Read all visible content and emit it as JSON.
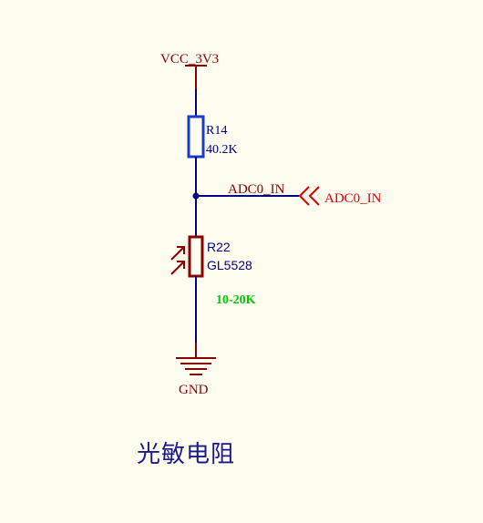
{
  "power": {
    "net": "VCC_3V3"
  },
  "r14": {
    "ref": "R14",
    "value": "40.2K"
  },
  "net_adc": {
    "wire_label": "ADC0_IN",
    "port_label": "ADC0_IN"
  },
  "r22": {
    "ref": "R22",
    "part": "GL5528",
    "range": "10-20K"
  },
  "ground": {
    "net": "GND"
  },
  "caption": "光敏电阻",
  "colors": {
    "wire": "#000080",
    "component_body": "#8b0000",
    "resistor_outline": "#1a3acb",
    "power_port": "#8b0000",
    "net_port": "#e00000",
    "label_dark": "#000080",
    "range_label": "#00c800",
    "caption": "#1a1a8c",
    "background": "#fffdf0"
  }
}
